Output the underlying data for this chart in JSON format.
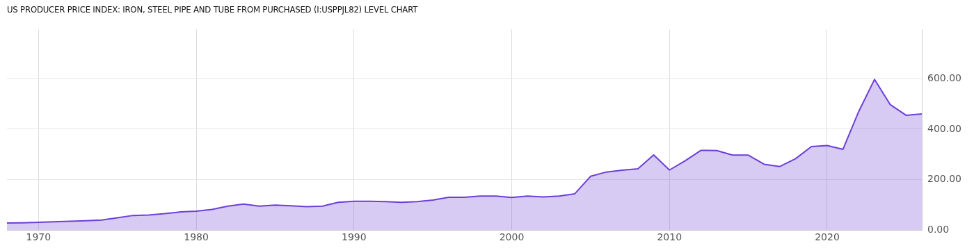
{
  "chart_data": {
    "type": "area",
    "title": "US PRODUCER PRICE INDEX: IRON, STEEL PIPE AND TUBE FROM PURCHASED (I:USPPJL82) LEVEL CHART",
    "x": [
      1968,
      1969,
      1970,
      1971,
      1972,
      1973,
      1974,
      1975,
      1976,
      1977,
      1978,
      1979,
      1980,
      1981,
      1982,
      1983,
      1984,
      1985,
      1986,
      1987,
      1988,
      1989,
      1990,
      1991,
      1992,
      1993,
      1994,
      1995,
      1996,
      1997,
      1998,
      1999,
      2000,
      2001,
      2002,
      2003,
      2004,
      2005,
      2006,
      2007,
      2008,
      2009,
      2010,
      2011,
      2012,
      2013,
      2014,
      2015,
      2016,
      2017,
      2018,
      2019,
      2020,
      2021,
      2022,
      2023,
      2024,
      2025,
      2026
    ],
    "series": [
      {
        "color": "#6c3fd6",
        "values": [
          28,
          29,
          31,
          33,
          35,
          37,
          40,
          49,
          58,
          60,
          65,
          72,
          75,
          82,
          95,
          103,
          95,
          99,
          96,
          93,
          95,
          110,
          114,
          114,
          113,
          110,
          113,
          119,
          130,
          130,
          135,
          135,
          129,
          135,
          131,
          135,
          144,
          213,
          230,
          237,
          243,
          298,
          238,
          275,
          316,
          315,
          297,
          297,
          261,
          252,
          283,
          331,
          335,
          320,
          470,
          597,
          497,
          455,
          460
        ]
      }
    ],
    "xlim": [
      1968,
      2026
    ],
    "xticks": [
      1970,
      1980,
      1990,
      2000,
      2010,
      2020
    ],
    "ylim": [
      0,
      795
    ],
    "yticks": [
      {
        "value": 0,
        "label": "0.00"
      },
      {
        "value": 200,
        "label": "200.00"
      },
      {
        "value": 400,
        "label": "400.00"
      },
      {
        "value": 600,
        "label": "600.00"
      }
    ],
    "grid": true,
    "legend": false
  }
}
